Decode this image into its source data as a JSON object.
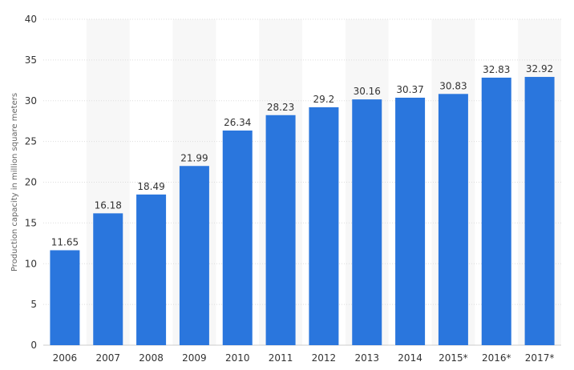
{
  "chart_data": {
    "type": "bar",
    "categories": [
      "2006",
      "2007",
      "2008",
      "2009",
      "2010",
      "2011",
      "2012",
      "2013",
      "2014",
      "2015*",
      "2016*",
      "2017*"
    ],
    "values": [
      11.65,
      16.18,
      18.49,
      21.99,
      26.34,
      28.23,
      29.2,
      30.16,
      30.37,
      30.83,
      32.83,
      32.92
    ],
    "data_labels": [
      "11.65",
      "16.18",
      "18.49",
      "21.99",
      "26.34",
      "28.23",
      "29.2",
      "30.16",
      "30.37",
      "30.83",
      "32.83",
      "32.92"
    ],
    "title": "",
    "xlabel": "",
    "ylabel": "Production capacity in million square meters",
    "ylim": [
      0,
      40
    ],
    "yticks": [
      0,
      5,
      10,
      15,
      20,
      25,
      30,
      35,
      40
    ],
    "grid": true,
    "legend": "none",
    "bar_color": "#2a76dd",
    "band_color": "#f7f7f7",
    "grid_color": "#dddddd"
  }
}
